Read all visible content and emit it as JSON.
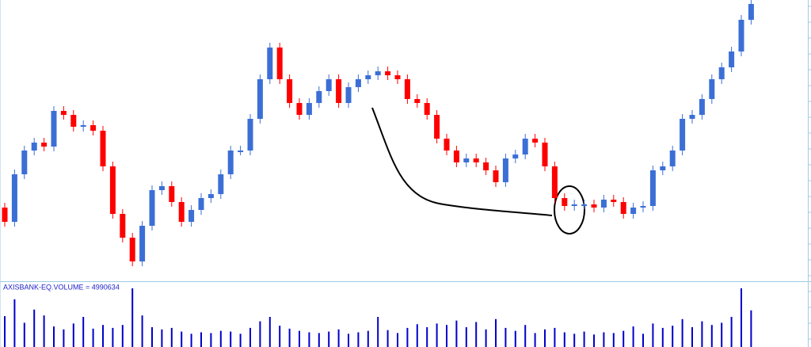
{
  "chart_data": {
    "type": "candlestick",
    "up_color": "#3b6fd6",
    "down_color": "#ff0000",
    "ylim": [
      0,
      355
    ],
    "open": [
      93,
      75,
      135,
      165,
      175,
      170,
      215,
      210,
      195,
      197,
      190,
      145,
      85,
      55,
      25,
      70,
      115,
      120,
      100,
      75,
      90,
      105,
      110,
      135,
      165,
      165,
      205,
      255,
      295,
      255,
      225,
      210,
      225,
      240,
      255,
      225,
      245,
      255,
      260,
      265,
      260,
      255,
      230,
      225,
      210,
      180,
      165,
      150,
      155,
      150,
      140,
      125,
      155,
      160,
      180,
      175,
      145,
      105,
      95,
      97,
      97,
      93,
      103,
      100,
      85,
      93,
      95,
      140,
      145,
      165,
      205,
      210,
      230,
      255,
      270,
      290,
      330
    ],
    "high": [
      99,
      141,
      171,
      181,
      181,
      221,
      221,
      216,
      203,
      203,
      196,
      151,
      91,
      61,
      76,
      121,
      126,
      126,
      106,
      96,
      111,
      116,
      141,
      171,
      171,
      211,
      261,
      301,
      301,
      261,
      231,
      231,
      246,
      261,
      261,
      251,
      261,
      266,
      271,
      271,
      266,
      261,
      236,
      231,
      216,
      186,
      171,
      161,
      161,
      156,
      146,
      161,
      166,
      186,
      186,
      181,
      151,
      111,
      103,
      103,
      103,
      109,
      109,
      106,
      99,
      101,
      146,
      151,
      171,
      211,
      216,
      236,
      261,
      276,
      296,
      336,
      356
    ],
    "low": [
      69,
      69,
      129,
      159,
      164,
      164,
      204,
      189,
      189,
      184,
      139,
      79,
      49,
      19,
      19,
      64,
      109,
      94,
      69,
      69,
      84,
      99,
      104,
      129,
      159,
      159,
      199,
      249,
      249,
      219,
      204,
      204,
      219,
      234,
      219,
      219,
      239,
      249,
      254,
      254,
      249,
      224,
      219,
      204,
      174,
      159,
      144,
      144,
      144,
      134,
      119,
      119,
      149,
      154,
      169,
      139,
      99,
      89,
      89,
      91,
      87,
      87,
      94,
      79,
      79,
      87,
      89,
      134,
      139,
      159,
      199,
      204,
      224,
      249,
      264,
      284,
      324
    ],
    "close": [
      75,
      135,
      165,
      175,
      170,
      215,
      210,
      195,
      197,
      190,
      145,
      85,
      55,
      25,
      70,
      115,
      120,
      100,
      75,
      90,
      105,
      110,
      135,
      165,
      165,
      205,
      255,
      295,
      255,
      225,
      210,
      225,
      240,
      255,
      225,
      245,
      255,
      260,
      265,
      260,
      255,
      230,
      225,
      210,
      180,
      165,
      150,
      155,
      150,
      140,
      125,
      155,
      160,
      180,
      175,
      145,
      105,
      95,
      97,
      97,
      93,
      103,
      100,
      85,
      93,
      95,
      140,
      145,
      165,
      205,
      210,
      230,
      255,
      270,
      290,
      330,
      350
    ],
    "volume_label": "AXISBANK-EQ.VOLUME = 4990634",
    "volume_color": "#0000cc",
    "volume_ylim": [
      0,
      8200000
    ],
    "volume": [
      4200000,
      6500000,
      3300000,
      5100000,
      4300000,
      2800000,
      2400000,
      3200000,
      4100000,
      2500000,
      3000000,
      2600000,
      3000000,
      8000000,
      4300000,
      2700000,
      2400000,
      2600000,
      2100000,
      1800000,
      2000000,
      1900000,
      2200000,
      2100000,
      1800000,
      2600000,
      3500000,
      4100000,
      2900000,
      2500000,
      2200000,
      2000000,
      1900000,
      2100000,
      2400000,
      1800000,
      2000000,
      2200000,
      4100000,
      2300000,
      1900000,
      2600000,
      3100000,
      2700000,
      3200000,
      3000000,
      3600000,
      2700000,
      3400000,
      2400000,
      3800000,
      2600000,
      2200000,
      3000000,
      1900000,
      2400000,
      2600000,
      2000000,
      1800000,
      2100000,
      1700000,
      2000000,
      1900000,
      2200000,
      2800000,
      1800000,
      3200000,
      2600000,
      2900000,
      3800000,
      2700000,
      3500000,
      3000000,
      3300000,
      4100000,
      8000000,
      4990634
    ]
  }
}
